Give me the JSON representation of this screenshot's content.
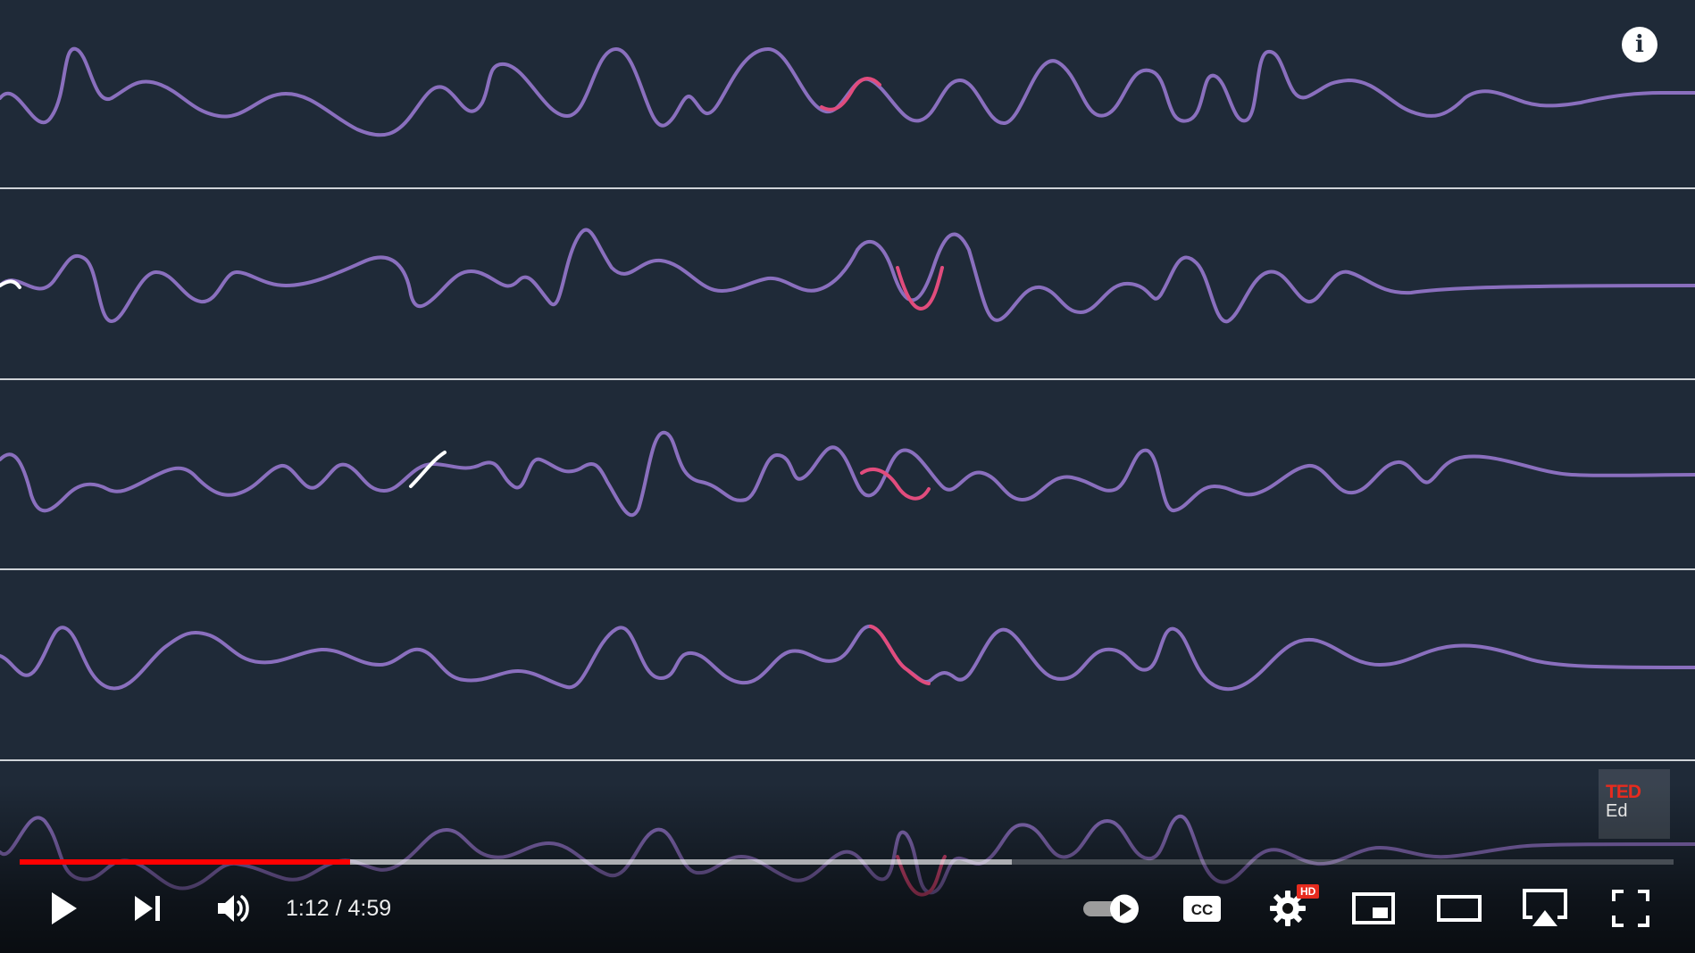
{
  "player": {
    "current_time": "1:12",
    "time_separator": " / ",
    "duration": "4:59",
    "progress": {
      "played_fraction": 0.2,
      "buffered_fraction": 0.6
    }
  },
  "overlay": {
    "info_label": "i",
    "brand": {
      "ted": "TED",
      "ed": "Ed"
    }
  },
  "controls": {
    "settings_badge": "HD",
    "icons": [
      "play-icon",
      "next-icon",
      "volume-icon",
      "autoplay-toggle-icon",
      "captions-icon",
      "settings-icon",
      "miniplayer-icon",
      "theater-mode-icon",
      "airplay-icon",
      "fullscreen-icon"
    ]
  },
  "colors": {
    "background": "#1f2a38",
    "wave": "#8a6fbe",
    "wave_highlight": "#e14c7d",
    "wave_cursor": "#ffffff",
    "divider": "#cfd3d8",
    "progress_played": "#ff0000",
    "brand_red": "#e62b1e"
  }
}
